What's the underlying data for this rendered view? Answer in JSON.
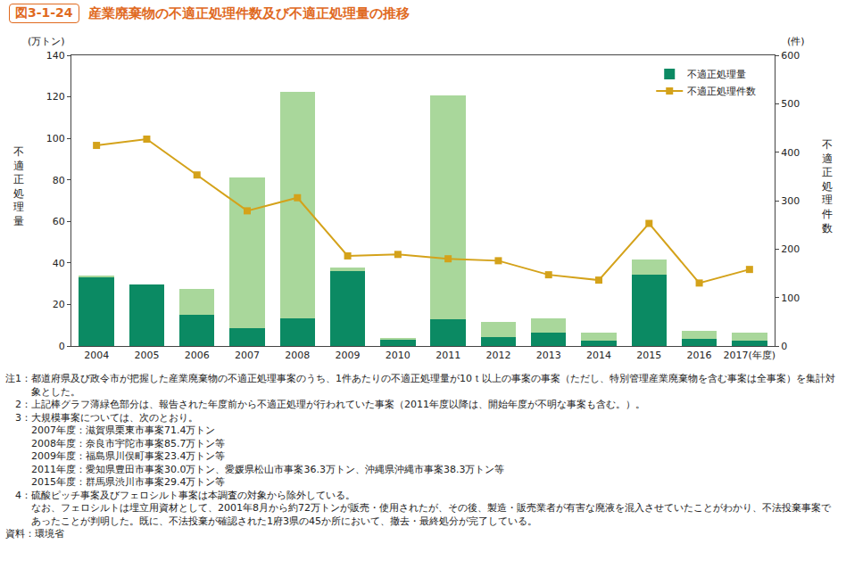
{
  "chart_data": {
    "type": "bar",
    "figure_number": "図3-1-24",
    "title": "産業廃棄物の不適正処理件数及び不適正処理量の推移",
    "ylabel": "不適正処理量",
    "y_unit": "(万トン)",
    "y2label": "不適正処理件数",
    "y2_unit": "(件)",
    "stacked": true,
    "grid": false,
    "legend": "top right",
    "categories": [
      "2004",
      "2005",
      "2006",
      "2007",
      "2008",
      "2009",
      "2010",
      "2011",
      "2012",
      "2013",
      "2014",
      "2015",
      "2016",
      "2017(年度)"
    ],
    "series": [
      {
        "name": "不適正処理量",
        "type": "bar",
        "color": "#0b8a63",
        "values": [
          33,
          29.5,
          15,
          8.5,
          13.5,
          36,
          3,
          13,
          4.5,
          6.5,
          2.5,
          34.5,
          3.5,
          2.5
        ]
      },
      {
        "type": "bar",
        "color": "#a9d79b",
        "values": [
          1,
          0,
          12.5,
          72.5,
          109,
          2,
          1,
          107.5,
          7,
          7,
          4,
          7,
          4,
          4
        ]
      },
      {
        "name": "不適正処理件数",
        "type": "line",
        "axis": "y2",
        "marker": "square",
        "color": "#d4a21a",
        "values": [
          414,
          427,
          353,
          279,
          306,
          186,
          189,
          180,
          176,
          147,
          136,
          253,
          130,
          158
        ]
      }
    ],
    "ylim": [
      0,
      140
    ],
    "yticks": [
      0,
      20,
      40,
      60,
      80,
      100,
      120,
      140
    ],
    "y2lim": [
      0,
      600
    ],
    "y2ticks": [
      0,
      100,
      200,
      300,
      400,
      500,
      600
    ],
    "notes": [
      {
        "head": "注1：",
        "lines": [
          "都道府県及び政令市が把握した産業廃棄物の不適正処理事案のうち、1件あたりの不適正処理量が10ｔ以上の事案の事案（ただし、特別管理産業廃棄物を含む事案は全事案）を集計対象とした。"
        ]
      },
      {
        "head": "　2：",
        "lines": [
          "上記棒グラフ薄緑色部分は、報告された年度前から不適正処理が行われていた事案（2011年度以降は、開始年度が不明な事案も含む。）。"
        ]
      },
      {
        "head": "　3：",
        "lines": [
          "大規模事案については、次のとおり。",
          "2007年度：滋賀県栗東市事案71.4万トン",
          "2008年度：奈良市宇陀市事案85.7万トン等",
          "2009年度：福島県川俣町事案23.4万トン等",
          "2011年度：愛知県豊田市事案30.0万トン、愛媛県松山市事案36.3万トン、沖縄県沖縄市事案38.3万トン等",
          "2015年度：群馬県渋川市事案29.4万トン等"
        ]
      },
      {
        "head": "　4：",
        "lines": [
          "硫酸ピッチ事案及びフェロシルト事案は本調査の対象から除外している。",
          "なお、フェロシルトは埋立用資材として、2001年8月から約72万トンが販売・使用されたが、その後、製造・販売業者が有害な廃液を混入させていたことがわかり、不法投棄事案であったことが判明した。既に、不法投棄が確認された1府3県の45か所において、撤去・最終処分が完了している。"
        ]
      },
      {
        "head": "資料：",
        "lines": [
          "環境省"
        ]
      }
    ]
  }
}
